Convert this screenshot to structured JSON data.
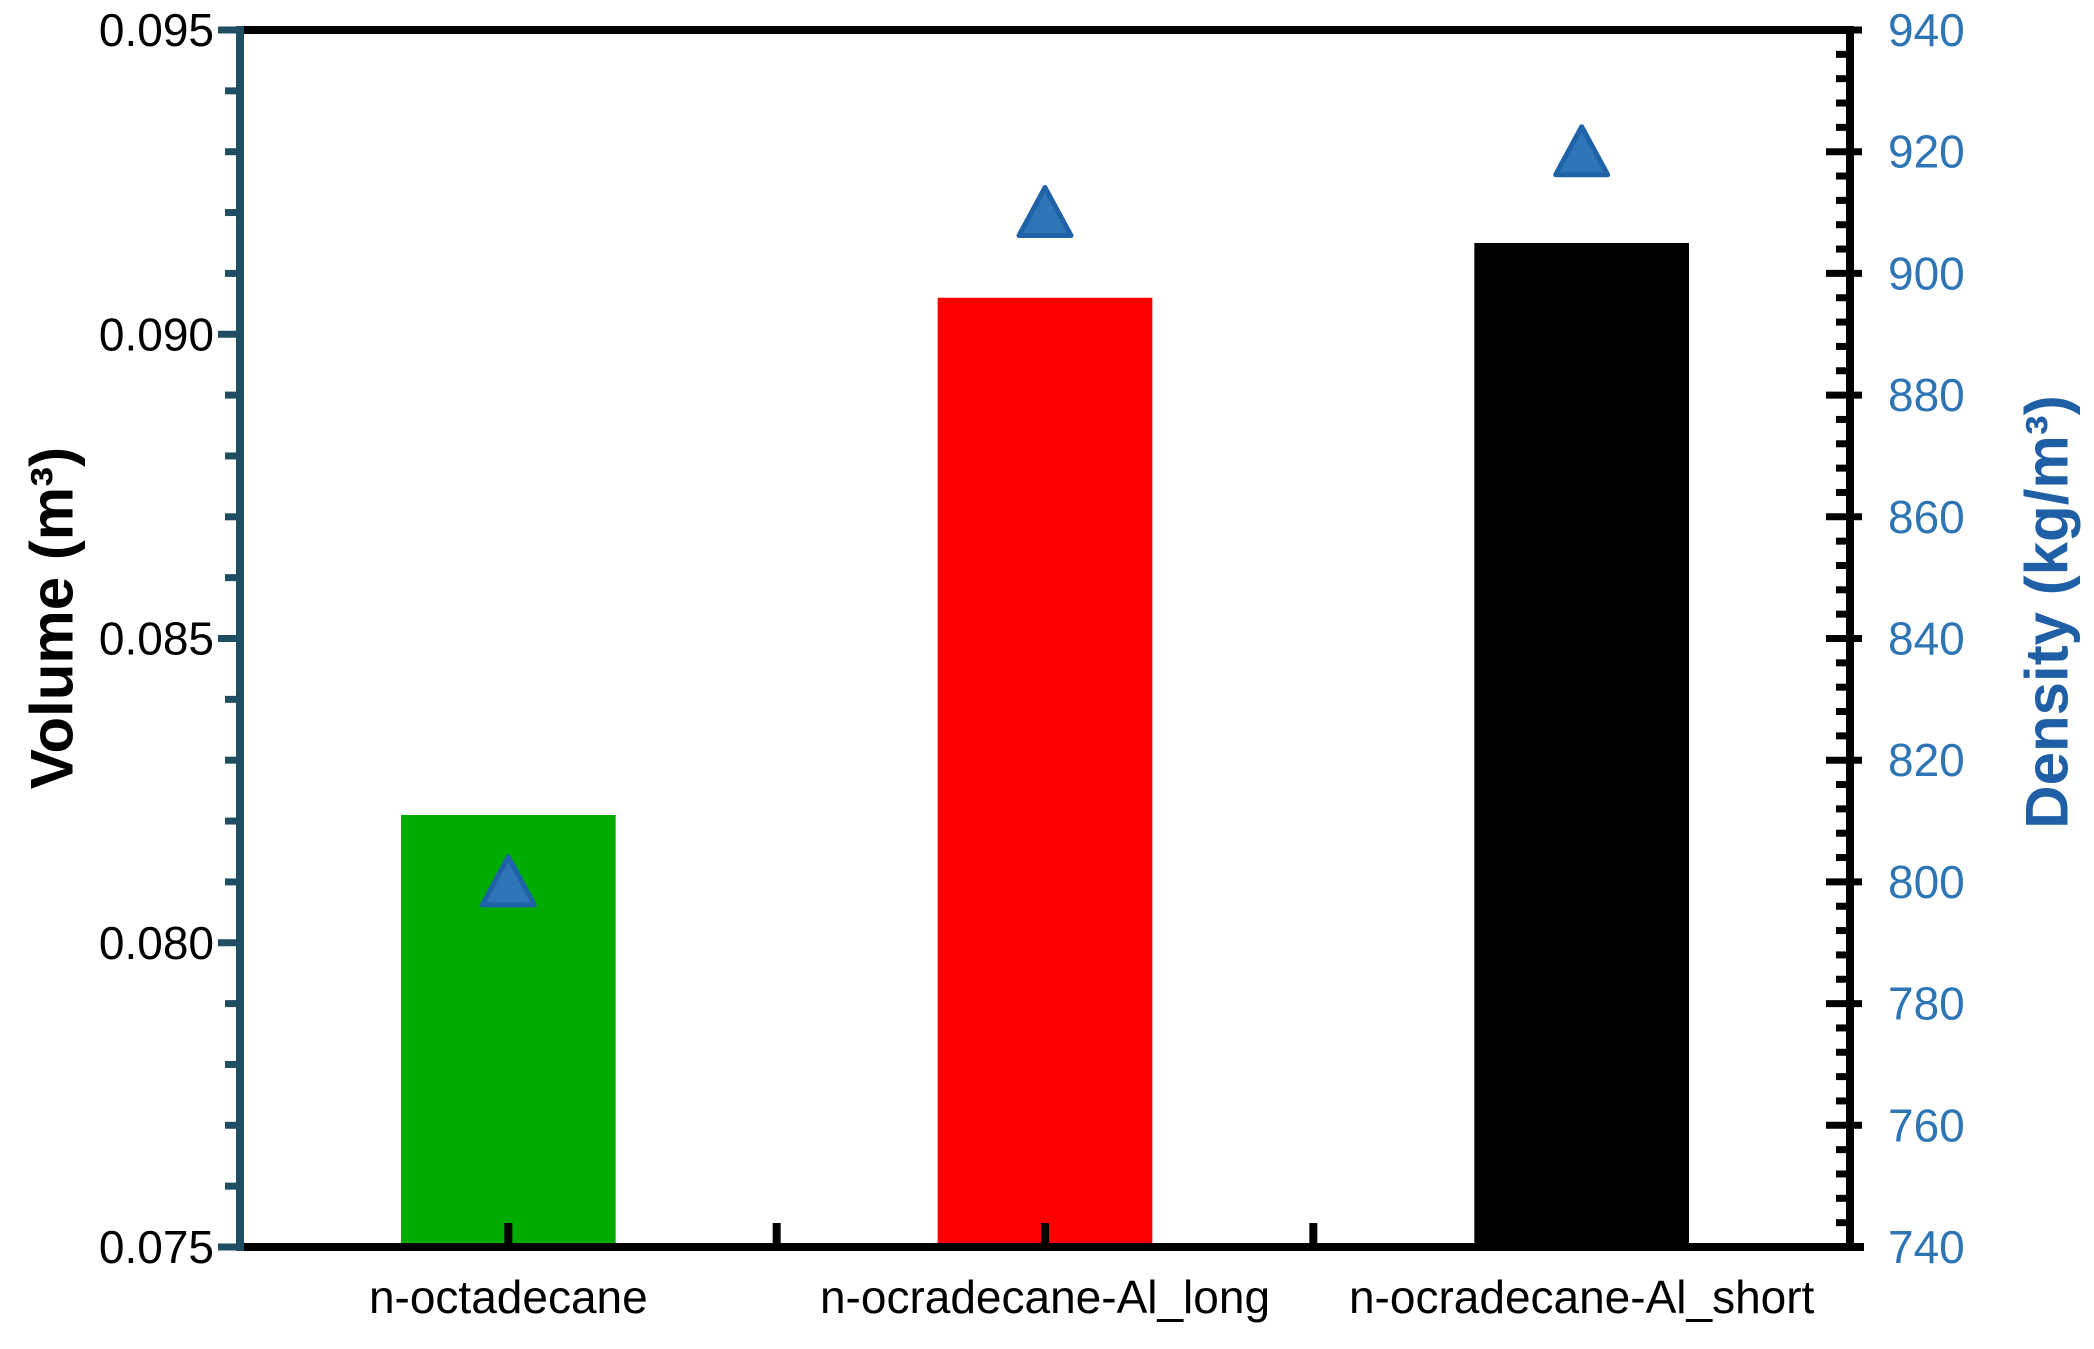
{
  "chart_data": {
    "type": "bar",
    "title": "",
    "categories": [
      "n-octadecane",
      "n-ocradecane-Al_long",
      "n-ocradecane-Al_short"
    ],
    "series": [
      {
        "name": "Volume",
        "type": "bar",
        "axis": "left",
        "values": [
          0.0821,
          0.0906,
          0.0915
        ],
        "bar_colors": [
          "#00AC00",
          "#FF0000",
          "#000000"
        ]
      },
      {
        "name": "Density",
        "type": "scatter",
        "marker": "triangle-up",
        "axis": "right",
        "values": [
          800,
          910,
          920
        ],
        "marker_fill": "#2E75B6",
        "marker_stroke": "#1F62A8"
      }
    ],
    "left_axis": {
      "label": "Volume (m³)",
      "min": 0.075,
      "max": 0.095,
      "major_step": 0.005,
      "minor_step": 0.001,
      "tick_labels": [
        "0.075",
        "0.080",
        "0.085",
        "0.090",
        "0.095"
      ],
      "axis_color": "#1F4E63",
      "tick_label_color": "#000000",
      "title_color": "#000000"
    },
    "right_axis": {
      "label": "Density (kg/m³)",
      "min": 740,
      "max": 940,
      "major_step": 20,
      "minor_step": 4,
      "tick_labels": [
        "740",
        "760",
        "780",
        "800",
        "820",
        "840",
        "860",
        "880",
        "900",
        "920",
        "940"
      ],
      "axis_color": "#000000",
      "tick_label_color": "#2E75B6",
      "title_color": "#1F5FA6"
    },
    "x_axis": {
      "axis_color": "#000000",
      "tick_label_color": "#000000"
    },
    "grid": false,
    "legend": false
  }
}
